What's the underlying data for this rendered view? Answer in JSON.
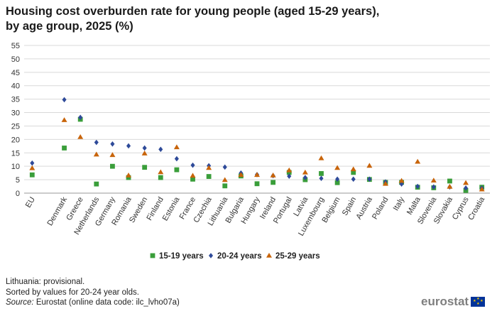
{
  "title_line1": "Housing cost overburden rate for young people (aged 15-29 years),",
  "title_line2": "by age group, 2025 (%)",
  "notes": {
    "line1": "Lithuania: provisional.",
    "line2": "Sorted by values for 20-24 year olds.",
    "source_label": "Source:",
    "source_text": " Eurostat (online data code: ilc_lvho07a)"
  },
  "logo": {
    "text": "eurostat"
  },
  "chart_data": {
    "type": "scatter",
    "title": "Housing cost overburden rate for young people (aged 15-29 years), by age group, 2025 (%)",
    "categories": [
      "EU",
      "",
      "Denmark",
      "Greece",
      "Netherlands",
      "Germany",
      "Romania",
      "Sweden",
      "Finland",
      "Estonia",
      "France",
      "Czechia",
      "Lithuania",
      "Bulgaria",
      "Hungary",
      "Ireland",
      "Portugal",
      "Latvia",
      "Luxembourg",
      "Belgium",
      "Spain",
      "Austria",
      "Poland",
      "Italy",
      "Malta",
      "Slovenia",
      "Slovakia",
      "Cyprus",
      "Croatia"
    ],
    "ylim": [
      0,
      55
    ],
    "yticks": [
      0,
      5,
      10,
      15,
      20,
      25,
      30,
      35,
      40,
      45,
      50,
      55
    ],
    "grid": true,
    "legend_position": "bottom",
    "series": [
      {
        "name": "15-19 years",
        "color": "#3a9e3a",
        "marker": "square",
        "values": [
          6.8,
          null,
          16.8,
          27.5,
          3.4,
          10.0,
          5.8,
          9.6,
          5.8,
          8.7,
          5.2,
          6.2,
          2.7,
          6.4,
          3.5,
          4.0,
          7.7,
          5.0,
          7.3,
          3.9,
          7.7,
          5.1,
          4.0,
          4.0,
          2.2,
          2.0,
          4.5,
          1.0,
          2.2
        ]
      },
      {
        "name": "20-24 years",
        "color": "#2e4a99",
        "marker": "diamond",
        "values": [
          11.2,
          null,
          34.8,
          28.2,
          18.9,
          18.3,
          17.6,
          16.8,
          16.3,
          12.8,
          10.4,
          10.2,
          9.7,
          7.5,
          6.9,
          6.5,
          6.3,
          5.8,
          5.5,
          5.2,
          5.2,
          5.2,
          4.2,
          3.4,
          2.5,
          2.3,
          2.3,
          1.9,
          1.9
        ]
      },
      {
        "name": "25-29 years",
        "color": "#c8640a",
        "marker": "triangle",
        "values": [
          9.3,
          null,
          27.2,
          20.9,
          14.4,
          14.2,
          6.6,
          14.8,
          7.8,
          17.1,
          6.5,
          9.4,
          4.9,
          6.8,
          6.8,
          6.6,
          8.5,
          7.7,
          13.0,
          9.4,
          8.9,
          10.2,
          3.5,
          4.6,
          11.7,
          4.7,
          2.4,
          3.8,
          1.4
        ]
      }
    ]
  }
}
